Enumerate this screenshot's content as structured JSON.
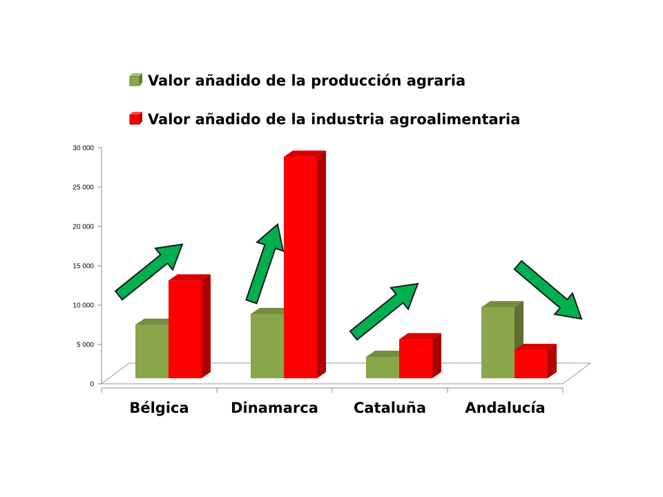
{
  "chart_data": {
    "type": "bar",
    "style": "3d-clustered-column",
    "categories": [
      "Bélgica",
      "Dinamarca",
      "Cataluña",
      "Andalucía"
    ],
    "series": [
      {
        "name": "Valor añadido de la producción agraria",
        "color": "#8aa64a",
        "values": [
          7000,
          8400,
          2800,
          9300
        ]
      },
      {
        "name": "Valor añadido de la industria agroalimentaria",
        "color": "#ff0000",
        "values": [
          12800,
          29000,
          5100,
          3700
        ]
      }
    ],
    "yticks": [
      "0",
      "5 000",
      "10 000",
      "15 000",
      "20 000",
      "25 000",
      "30 000"
    ],
    "ylim": [
      0,
      30000
    ],
    "legend_position": "top",
    "annotations": [
      {
        "type": "trend-arrow",
        "category": "Bélgica",
        "direction": "up",
        "color": "#00b050"
      },
      {
        "type": "trend-arrow",
        "category": "Dinamarca",
        "direction": "up",
        "color": "#00b050"
      },
      {
        "type": "trend-arrow",
        "category": "Cataluña",
        "direction": "up",
        "color": "#00b050"
      },
      {
        "type": "trend-arrow",
        "category": "Andalucía",
        "direction": "down",
        "color": "#00b050"
      }
    ]
  }
}
